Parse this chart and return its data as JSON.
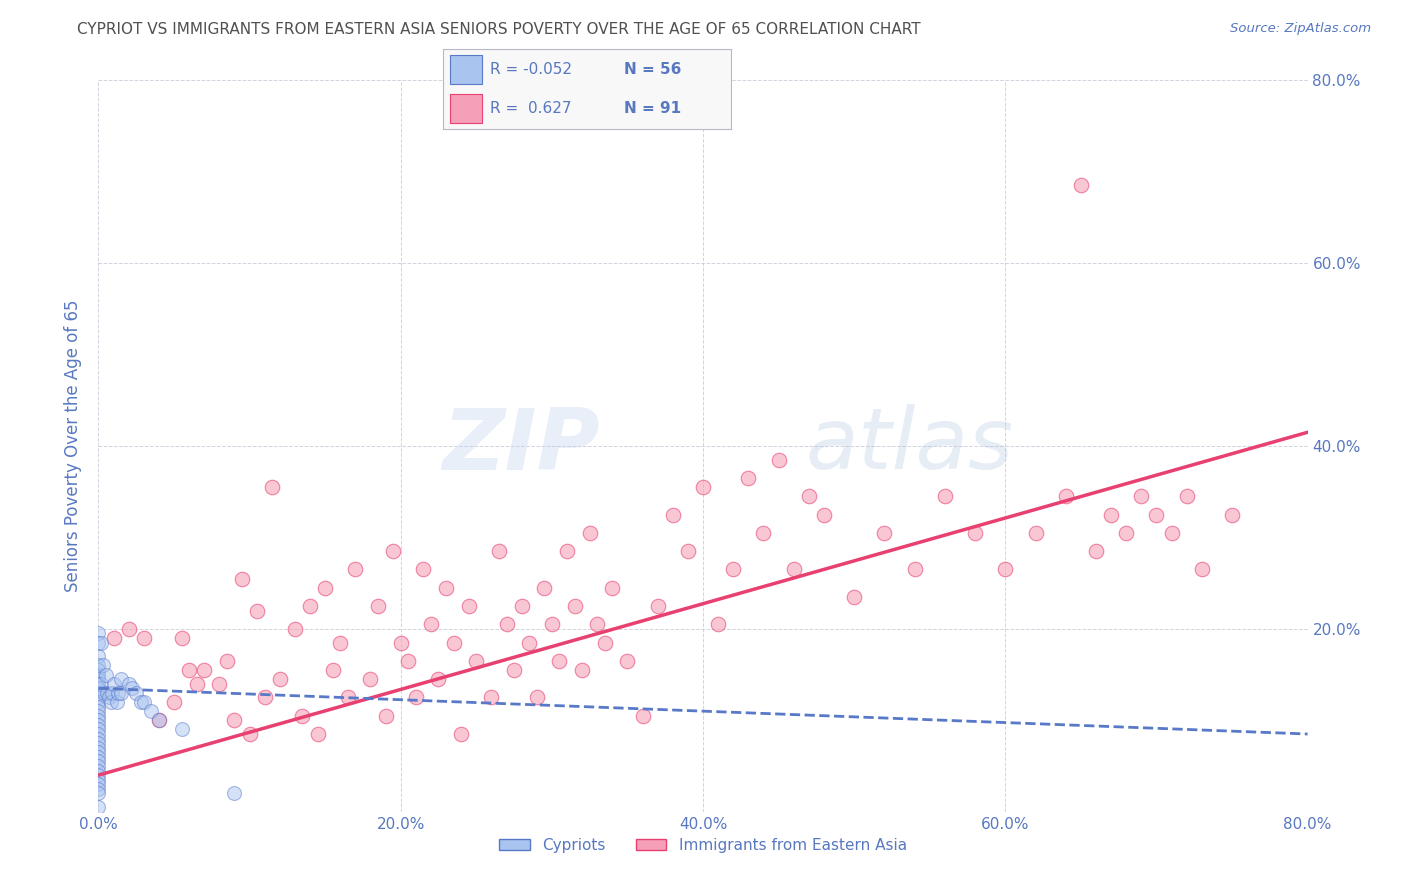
{
  "title": "CYPRIOT VS IMMIGRANTS FROM EASTERN ASIA SENIORS POVERTY OVER THE AGE OF 65 CORRELATION CHART",
  "source": "Source: ZipAtlas.com",
  "ylabel": "Seniors Poverty Over the Age of 65",
  "xlim": [
    0,
    0.8
  ],
  "ylim": [
    0,
    0.8
  ],
  "xtick_vals": [
    0.0,
    0.2,
    0.4,
    0.6,
    0.8
  ],
  "xtick_labels": [
    "0.0%",
    "20.0%",
    "40.0%",
    "60.0%",
    "80.0%"
  ],
  "ytick_vals": [
    0.2,
    0.4,
    0.6,
    0.8
  ],
  "ytick_labels": [
    "20.0%",
    "40.0%",
    "60.0%",
    "80.0%"
  ],
  "legend_r_cypriot": "-0.052",
  "legend_n_cypriot": "56",
  "legend_r_eastern": "0.627",
  "legend_n_eastern": "91",
  "cypriot_color": "#aac4f0",
  "eastern_color": "#f5a0b8",
  "cypriot_line_color": "#5878c8",
  "eastern_line_color": "#e84070",
  "watermark_zip": "ZIP",
  "watermark_atlas": "atlas",
  "background_color": "#ffffff",
  "grid_color": "#c8c8d8",
  "title_color": "#505050",
  "axis_label_color": "#5878c0",
  "tick_label_color": "#5878c0",
  "eastern_line_x0": 0.0,
  "eastern_line_y0": 0.04,
  "eastern_line_x1": 0.8,
  "eastern_line_y1": 0.415,
  "cypriot_line_x0": 0.0,
  "cypriot_line_y0": 0.135,
  "cypriot_line_x1": 0.8,
  "cypriot_line_y1": 0.085,
  "cypriot_x": [
    0.0,
    0.0,
    0.0,
    0.0,
    0.0,
    0.0,
    0.0,
    0.0,
    0.0,
    0.0,
    0.0,
    0.0,
    0.0,
    0.0,
    0.0,
    0.0,
    0.0,
    0.0,
    0.0,
    0.0,
    0.0,
    0.0,
    0.0,
    0.0,
    0.0,
    0.0,
    0.0,
    0.0,
    0.0,
    0.0,
    0.0,
    0.0,
    0.0,
    0.002,
    0.002,
    0.003,
    0.004,
    0.005,
    0.006,
    0.007,
    0.008,
    0.009,
    0.01,
    0.012,
    0.013,
    0.015,
    0.015,
    0.02,
    0.022,
    0.025,
    0.028,
    0.03,
    0.035,
    0.04,
    0.055,
    0.09
  ],
  "cypriot_y": [
    0.195,
    0.185,
    0.17,
    0.16,
    0.155,
    0.15,
    0.145,
    0.14,
    0.135,
    0.13,
    0.125,
    0.12,
    0.115,
    0.11,
    0.105,
    0.1,
    0.095,
    0.09,
    0.085,
    0.08,
    0.075,
    0.07,
    0.065,
    0.06,
    0.055,
    0.05,
    0.045,
    0.04,
    0.035,
    0.03,
    0.025,
    0.02,
    0.005,
    0.185,
    0.14,
    0.16,
    0.13,
    0.15,
    0.13,
    0.125,
    0.12,
    0.13,
    0.14,
    0.12,
    0.13,
    0.145,
    0.13,
    0.14,
    0.135,
    0.13,
    0.12,
    0.12,
    0.11,
    0.1,
    0.09,
    0.02
  ],
  "eastern_x": [
    0.01,
    0.02,
    0.03,
    0.04,
    0.05,
    0.055,
    0.06,
    0.065,
    0.07,
    0.08,
    0.085,
    0.09,
    0.095,
    0.1,
    0.105,
    0.11,
    0.115,
    0.12,
    0.13,
    0.135,
    0.14,
    0.145,
    0.15,
    0.155,
    0.16,
    0.165,
    0.17,
    0.18,
    0.185,
    0.19,
    0.195,
    0.2,
    0.205,
    0.21,
    0.215,
    0.22,
    0.225,
    0.23,
    0.235,
    0.24,
    0.245,
    0.25,
    0.26,
    0.265,
    0.27,
    0.275,
    0.28,
    0.285,
    0.29,
    0.295,
    0.3,
    0.305,
    0.31,
    0.315,
    0.32,
    0.325,
    0.33,
    0.335,
    0.34,
    0.35,
    0.36,
    0.37,
    0.38,
    0.39,
    0.4,
    0.41,
    0.42,
    0.43,
    0.44,
    0.45,
    0.46,
    0.47,
    0.48,
    0.5,
    0.52,
    0.54,
    0.56,
    0.58,
    0.6,
    0.62,
    0.64,
    0.66,
    0.67,
    0.68,
    0.69,
    0.7,
    0.71,
    0.72,
    0.73,
    0.75,
    0.65
  ],
  "eastern_y": [
    0.19,
    0.2,
    0.19,
    0.1,
    0.12,
    0.19,
    0.155,
    0.14,
    0.155,
    0.14,
    0.165,
    0.1,
    0.255,
    0.085,
    0.22,
    0.125,
    0.355,
    0.145,
    0.2,
    0.105,
    0.225,
    0.085,
    0.245,
    0.155,
    0.185,
    0.125,
    0.265,
    0.145,
    0.225,
    0.105,
    0.285,
    0.185,
    0.165,
    0.125,
    0.265,
    0.205,
    0.145,
    0.245,
    0.185,
    0.085,
    0.225,
    0.165,
    0.125,
    0.285,
    0.205,
    0.155,
    0.225,
    0.185,
    0.125,
    0.245,
    0.205,
    0.165,
    0.285,
    0.225,
    0.155,
    0.305,
    0.205,
    0.185,
    0.245,
    0.165,
    0.105,
    0.225,
    0.325,
    0.285,
    0.355,
    0.205,
    0.265,
    0.365,
    0.305,
    0.385,
    0.265,
    0.345,
    0.325,
    0.235,
    0.305,
    0.265,
    0.345,
    0.305,
    0.265,
    0.305,
    0.345,
    0.285,
    0.325,
    0.305,
    0.345,
    0.325,
    0.305,
    0.345,
    0.265,
    0.325,
    0.685
  ]
}
